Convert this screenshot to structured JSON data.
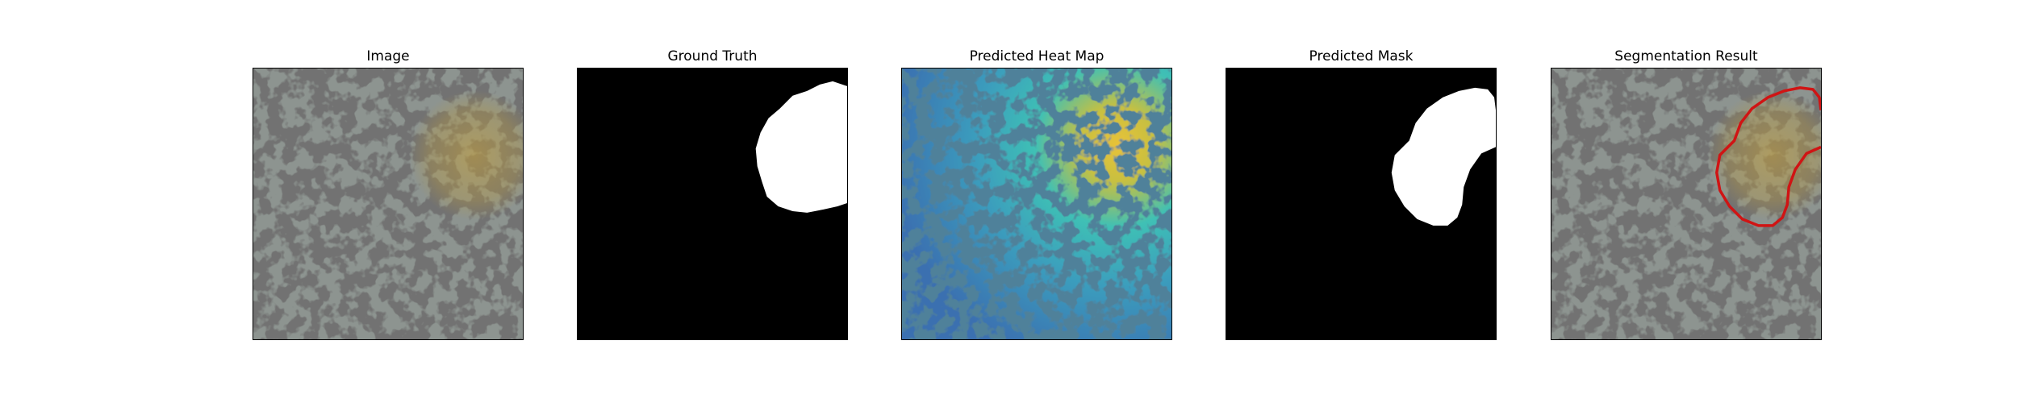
{
  "figure": {
    "panels": [
      {
        "id": "image",
        "title": "Image"
      },
      {
        "id": "ground-truth",
        "title": "Ground Truth"
      },
      {
        "id": "heatmap",
        "title": "Predicted Heat Map"
      },
      {
        "id": "predicted-mask",
        "title": "Predicted Mask"
      },
      {
        "id": "segmentation",
        "title": "Segmentation Result"
      }
    ]
  },
  "colors": {
    "background": "#ffffff",
    "texture_base": "#8d9490",
    "texture_spots": "#2c2c2c",
    "mask_foreground": "#ffffff",
    "mask_background": "#000000",
    "contour": "#d01414",
    "heat_low": "#3a7fb8",
    "heat_mid": "#3fc0b5",
    "heat_high": "#e8c238"
  }
}
